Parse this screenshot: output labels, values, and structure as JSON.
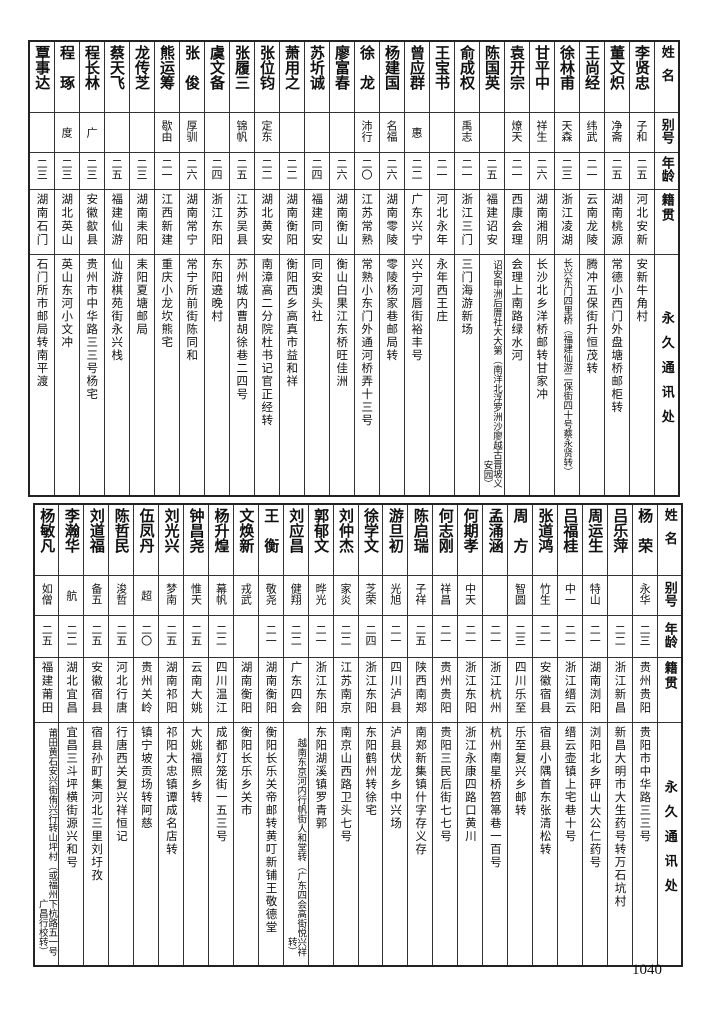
{
  "headers": {
    "name": "姓名",
    "alias": "别号",
    "age": "年龄",
    "hometown": "籍贯",
    "address": "永久通讯处"
  },
  "top_table": [
    {
      "name": "李贤忠",
      "alias": "子和",
      "age": "二五",
      "hometown": "河北安新",
      "address": "安新牛角村"
    },
    {
      "name": "董文炽",
      "alias": "净斋",
      "age": "二五",
      "hometown": "湖南桃源",
      "address": "常德小西门外盘塘桥邮柜转"
    },
    {
      "name": "王尚经",
      "alias": "纬武",
      "age": "二一",
      "hometown": "云南龙陵",
      "address": "腾冲五保街升恒茂转"
    },
    {
      "name": "徐林甫",
      "alias": "天森",
      "age": "二三",
      "hometown": "浙江凌湖",
      "address": "长兴东门四里桥（福建仙游二保街四十号蔡永贤转）"
    },
    {
      "name": "甘平中",
      "alias": "祥生",
      "age": "二六",
      "hometown": "湖南湘阴",
      "address": "长沙北乡洋桥邮转甘家冲"
    },
    {
      "name": "袁开宗",
      "alias": "燎天",
      "age": "二一",
      "hometown": "西康会理",
      "address": "会理上南路绿水河"
    },
    {
      "name": "陈国英",
      "alias": "",
      "age": "二五",
      "hometown": "福建诏安",
      "address": "诏安甲洲后厝社大大第（南洋北浮罗洲沙廖越古晋坡义安园）"
    },
    {
      "name": "俞成权",
      "alias": "禹志",
      "age": "二一",
      "hometown": "浙江三门",
      "address": "三门海游新场"
    },
    {
      "name": "王宝书",
      "alias": "",
      "age": "二一",
      "hometown": "河北永年",
      "address": "永年西王庄"
    },
    {
      "name": "曾应群",
      "alias": "惠",
      "age": "二二",
      "hometown": "广东兴宁",
      "address": "兴宁河唇街裕丰号"
    },
    {
      "name": "杨建国",
      "alias": "名福",
      "age": "二六",
      "hometown": "湖南零陵",
      "address": "零陵杨家巷邮局转"
    },
    {
      "name": "徐龙",
      "alias": "沛行",
      "age": "二〇",
      "hometown": "江苏常熟",
      "address": "常熟小东门外通河桥弄十三号"
    },
    {
      "name": "廖富春",
      "alias": "",
      "age": "二六",
      "hometown": "湖南衡山",
      "address": "衡山白果江东桥旺佳洲"
    },
    {
      "name": "苏圻诚",
      "alias": "",
      "age": "二四",
      "hometown": "福建同安",
      "address": "同安澳头社"
    },
    {
      "name": "萧用之",
      "alias": "",
      "age": "二二",
      "hometown": "湖南衡阳",
      "address": "衡阳西乡高真市益和祥"
    },
    {
      "name": "张位钧",
      "alias": "定东",
      "age": "二二",
      "hometown": "湖北黄安",
      "address": "南漳高二分院杜书记官正经转"
    },
    {
      "name": "张履三",
      "alias": "锦帆",
      "age": "二五",
      "hometown": "江苏吴县",
      "address": "苏州城内曹胡徐巷二四号"
    },
    {
      "name": "虞文备",
      "alias": "",
      "age": "二四",
      "hometown": "浙江东阳",
      "address": "东阳遶晚村"
    },
    {
      "name": "张俊",
      "alias": "厚驯",
      "age": "二六",
      "hometown": "湖南常宁",
      "address": "常宁所前街陈同和"
    },
    {
      "name": "熊运筹",
      "alias": "歇由",
      "age": "二一",
      "hometown": "江西新建",
      "address": "重庆小龙坎熊宅"
    },
    {
      "name": "龙传芝",
      "alias": "",
      "age": "二三",
      "hometown": "湖南耒阳",
      "address": "耒阳夏塘邮局"
    },
    {
      "name": "蔡天飞",
      "alias": "",
      "age": "二五",
      "hometown": "福建仙游",
      "address": "仙游棋苑街永兴栈"
    },
    {
      "name": "程长林",
      "alias": "广",
      "age": "二三",
      "hometown": "安徽歙县",
      "address": "贵州市中华路三三号杨宅"
    },
    {
      "name": "程琢",
      "alias": "度",
      "age": "二三",
      "hometown": "湖北英山",
      "address": "英山东河小文冲"
    },
    {
      "name": "覃事达",
      "alias": "",
      "age": "二三",
      "hometown": "湖南石门",
      "address": "石门所市邮局转南平渡"
    }
  ],
  "bottom_table": [
    {
      "name": "杨荣",
      "alias": "永华",
      "age": "二三",
      "hometown": "贵州贵阳",
      "address": "贵阳市中华路三三号"
    },
    {
      "name": "吕乐萍",
      "alias": "",
      "age": "二二",
      "hometown": "浙江新昌",
      "address": "新昌大明市大生药号转万石坑村"
    },
    {
      "name": "周运生",
      "alias": "特山",
      "age": "二一",
      "hometown": "湖南浏阳",
      "address": "浏阳北乡砰山大公仁药号"
    },
    {
      "name": "吕福桂",
      "alias": "中一",
      "age": "二一",
      "hometown": "浙江缙云",
      "address": "缙云壶镇上宅巷十号"
    },
    {
      "name": "张道鸿",
      "alias": "竹生",
      "age": "二一",
      "hometown": "安徽宿县",
      "address": "宿县小隅首东张清松转"
    },
    {
      "name": "周方",
      "alias": "智圆",
      "age": "二三",
      "hometown": "四川乐至",
      "address": "乐至复兴乡邮转"
    },
    {
      "name": "孟涌涵",
      "alias": "",
      "age": "二一",
      "hometown": "浙江杭州",
      "address": "杭州南星桥笤箒巷一百号"
    },
    {
      "name": "何期孝",
      "alias": "中天",
      "age": "二一",
      "hometown": "浙江东阳",
      "address": "浙江永康四路口黄川"
    },
    {
      "name": "何志刚",
      "alias": "祥昌",
      "age": "二一",
      "hometown": "贵州贵阳",
      "address": "贵阳三民后街七七号"
    },
    {
      "name": "陈启瑞",
      "alias": "子祥",
      "age": "二五",
      "hometown": "陕西南郑",
      "address": "南郑新集镇什字存义存"
    },
    {
      "name": "游旦初",
      "alias": "光旭",
      "age": "二一",
      "hometown": "四川泸县",
      "address": "泸县伏龙乡中兴场"
    },
    {
      "name": "徐学文",
      "alias": "芝荣",
      "age": "二四",
      "hometown": "浙江东阳",
      "address": "东阳鹤州转徐宅"
    },
    {
      "name": "刘仲杰",
      "alias": "家炎",
      "age": "二二",
      "hometown": "江苏南京",
      "address": "南京山西路卫头七号"
    },
    {
      "name": "郭郁文",
      "alias": "晔光",
      "age": "二一",
      "hometown": "浙江东阳",
      "address": "东阳湖溪镇罗青郭"
    },
    {
      "name": "刘应昌",
      "alias": "健翔",
      "age": "二二",
      "hometown": "广东四会",
      "address": "越南东京河内行帆街人和堂转（广东四会高街悦兴祥转）"
    },
    {
      "name": "王衡",
      "alias": "敬尧",
      "age": "二一",
      "hometown": "湖南衡阳",
      "address": "衡阳长乐关帝邮转黄叮新铺王敬德堂"
    },
    {
      "name": "文焕新",
      "alias": "戎武",
      "age": "",
      "hometown": "湖南衡阳",
      "address": "衡阳长乐乡关市"
    },
    {
      "name": "杨升煌",
      "alias": "幕帆",
      "age": "二二",
      "hometown": "四川温江",
      "address": "成都灯笼街一五三号"
    },
    {
      "name": "钟昌尧",
      "alias": "惟天",
      "age": "二五",
      "hometown": "云南大姚",
      "address": "大姚福照乡转"
    },
    {
      "name": "刘光兴",
      "alias": "梦南",
      "age": "二五",
      "hometown": "湖南祁阳",
      "address": "祁阳大忠镇谭成名店转"
    },
    {
      "name": "伍凤丹",
      "alias": "超",
      "age": "二〇",
      "hometown": "贵州关岭",
      "address": "镇宁坡贡场转阿慈"
    },
    {
      "name": "陈哲民",
      "alias": "浚哲",
      "age": "二五",
      "hometown": "河北行唐",
      "address": "行唐西关复兴祥恒记"
    },
    {
      "name": "刘道福",
      "alias": "备五",
      "age": "二五",
      "hometown": "安徽宿县",
      "address": "宿县孙町集河北三里刘圩孜"
    },
    {
      "name": "李瀚华",
      "alias": "航",
      "age": "二二",
      "hometown": "湖北宜昌",
      "address": "宜昌三斗坪横街源兴和号"
    },
    {
      "name": "杨敏凡",
      "alias": "如僧",
      "age": "二五",
      "hometown": "福建莆田",
      "address": "莆田黄石安兴街侑兴行转山坪村（或福州下杭路五一号广昌行校转）"
    }
  ],
  "page_number": "1040"
}
